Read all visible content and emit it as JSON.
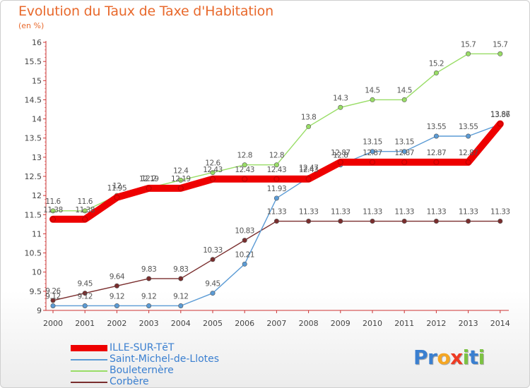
{
  "chart_data": {
    "type": "line",
    "title": "Evolution du Taux de Taxe d'Habitation",
    "subtitle": "(en %)",
    "x": [
      "2000",
      "2001",
      "2002",
      "2003",
      "2004",
      "2005",
      "2006",
      "2007",
      "2008",
      "2009",
      "2010",
      "2011",
      "2012",
      "2013",
      "2014"
    ],
    "ylim": [
      9,
      16
    ],
    "yticks": [
      "9",
      "9.5",
      "10",
      "10.5",
      "11",
      "11.5",
      "12",
      "12.5",
      "13",
      "13.5",
      "14",
      "14.5",
      "15",
      "15.5",
      "16"
    ],
    "grid": false,
    "legend_position": "bottom-left",
    "series": [
      {
        "name": "ILLE-SUR-TēT",
        "color": "#ee0000",
        "values": [
          11.38,
          11.38,
          11.95,
          12.19,
          12.19,
          12.43,
          12.43,
          12.43,
          12.43,
          12.87,
          12.87,
          12.87,
          12.87,
          12.87,
          13.87
        ],
        "labels": [
          "11.38",
          "11.38",
          "11.95",
          "12.19",
          "12.19",
          "12.43",
          "12.43",
          "12.43",
          "12.43",
          "12.87",
          "12.87",
          "12.87",
          "12.87",
          "12.87",
          "13.87"
        ]
      },
      {
        "name": "Saint-Michel-de-Llotes",
        "color": "#5b9bd5",
        "values": [
          9.12,
          9.12,
          9.12,
          9.12,
          9.12,
          9.45,
          10.21,
          11.93,
          12.47,
          12.8,
          13.15,
          13.15,
          13.55,
          13.55,
          13.86
        ],
        "labels": [
          "9.12",
          "9.12",
          "9.12",
          "9.12",
          "9.12",
          "9.45",
          "10.21",
          "11.93",
          "12.47",
          "12.8",
          "13.15",
          "13.15",
          "13.55",
          "13.55",
          "13.86"
        ]
      },
      {
        "name": "Bouleternère",
        "color": "#99dd66",
        "values": [
          11.6,
          11.6,
          12,
          12.2,
          12.4,
          12.6,
          12.8,
          12.8,
          13.8,
          14.3,
          14.5,
          14.5,
          15.2,
          15.7,
          15.7
        ],
        "labels": [
          "11.6",
          "11.6",
          "12",
          "12.2",
          "12.4",
          "12.6",
          "12.8",
          "12.8",
          "13.8",
          "14.3",
          "14.5",
          "14.5",
          "15.2",
          "15.7",
          "15.7"
        ]
      },
      {
        "name": "Corbère",
        "color": "#7a2e2e",
        "values": [
          9.26,
          9.45,
          9.64,
          9.83,
          9.83,
          10.33,
          10.83,
          11.33,
          11.33,
          11.33,
          11.33,
          11.33,
          11.33,
          11.33,
          11.33
        ],
        "labels": [
          "9.26",
          "9.45",
          "9.64",
          "9.83",
          "9.83",
          "10.33",
          "10.83",
          "11.33",
          "11.33",
          "11.33",
          "11.33",
          "11.33",
          "11.33",
          "11.33",
          "11.33"
        ]
      }
    ]
  },
  "logo": {
    "letters": [
      "P",
      "r",
      "o",
      "x",
      "i",
      "t",
      "i"
    ],
    "colors": [
      "#3a7fd0",
      "#3a7fd0",
      "#f5a623",
      "#ee3b24",
      "#7cc242",
      "#3a7fd0",
      "#7cc242"
    ]
  }
}
